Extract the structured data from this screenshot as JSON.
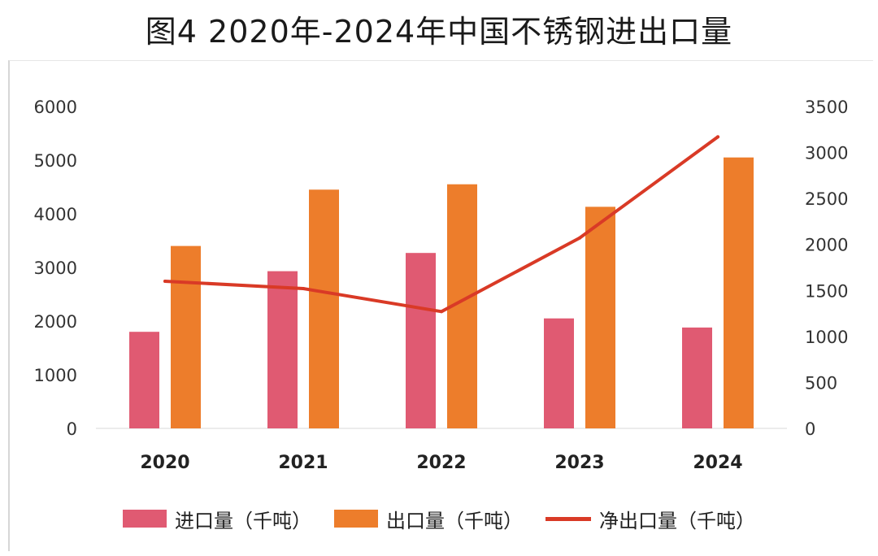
{
  "title": "图4 2020年-2024年中国不锈钢进出口量",
  "colors": {
    "import": "#e05a72",
    "export": "#ed7d2b",
    "net": "#d93a26"
  },
  "chart_data": {
    "type": "bar",
    "title": "图4 2020年-2024年中国不锈钢进出口量",
    "categories": [
      "2020",
      "2021",
      "2022",
      "2023",
      "2024"
    ],
    "series": [
      {
        "name": "进口量（千吨）",
        "type": "bar",
        "axis": "left",
        "values": [
          1800,
          2930,
          3270,
          2050,
          1880
        ]
      },
      {
        "name": "出口量（千吨）",
        "type": "bar",
        "axis": "left",
        "values": [
          3400,
          4450,
          4550,
          4130,
          5050
        ]
      },
      {
        "name": "净出口量（千吨）",
        "type": "line",
        "axis": "right",
        "values": [
          1600,
          1520,
          1270,
          2070,
          3170
        ]
      }
    ],
    "y_left": {
      "min": 0,
      "max": 6000,
      "ticks": [
        "0",
        "1000",
        "2000",
        "3000",
        "4000",
        "5000",
        "6000"
      ]
    },
    "y_right": {
      "min": 0,
      "max": 3500,
      "ticks": [
        "0",
        "500",
        "1000",
        "1500",
        "2000",
        "2500",
        "3000",
        "3500"
      ]
    },
    "grid": false,
    "legend_position": "bottom"
  },
  "legend": [
    {
      "label": "进口量（千吨）",
      "kind": "box",
      "color_key": "import"
    },
    {
      "label": "出口量（千吨）",
      "kind": "box",
      "color_key": "export"
    },
    {
      "label": "净出口量（千吨）",
      "kind": "line",
      "color_key": "net"
    }
  ]
}
